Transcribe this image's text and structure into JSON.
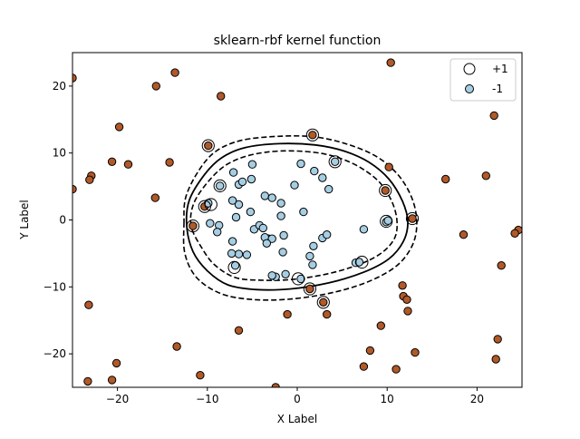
{
  "chart_data": {
    "type": "scatter",
    "title": "sklearn-rbf kernel function",
    "xlabel": "X Label",
    "ylabel": "Y Label",
    "xlim": [
      -25,
      25
    ],
    "ylim": [
      -25,
      25
    ],
    "xticks": [
      -20,
      -10,
      0,
      10,
      20
    ],
    "yticks": [
      -20,
      -10,
      0,
      10,
      20
    ],
    "grid": false,
    "legend_position": "top-right",
    "legend": [
      {
        "label": "+1",
        "marker": "open-circle"
      },
      {
        "label": "-1",
        "marker": "filled-circle",
        "color": "#a6cee3"
      }
    ],
    "colors": {
      "class_pos": "#b15928",
      "class_neg": "#a6cee3",
      "edge": "#000000"
    },
    "series": [
      {
        "class": "outer",
        "color": "#b15928",
        "points": [
          [
            -25,
            21.2
          ],
          [
            -25,
            4.6
          ],
          [
            -22.9,
            6.6
          ],
          [
            -23.1,
            6.0
          ],
          [
            -20.6,
            8.7
          ],
          [
            -19.8,
            13.9
          ],
          [
            -18.8,
            8.3
          ],
          [
            -15.7,
            20
          ],
          [
            -15.8,
            3.3
          ],
          [
            -14.2,
            8.6
          ],
          [
            -13.6,
            22
          ],
          [
            -8.5,
            18.5
          ],
          [
            -11.6,
            -0.9
          ],
          [
            -10.3,
            2.0
          ],
          [
            -9.9,
            11.1
          ],
          [
            -23.2,
            -12.7
          ],
          [
            -23.3,
            -24.1
          ],
          [
            -20.6,
            -23.9
          ],
          [
            -20.1,
            -21.4
          ],
          [
            -13.4,
            -18.9
          ],
          [
            -10.8,
            -23.2
          ],
          [
            -6.5,
            -16.5
          ],
          [
            -2.4,
            -25
          ],
          [
            -1.1,
            -14.1
          ],
          [
            1.4,
            -10.3
          ],
          [
            2.9,
            -12.3
          ],
          [
            3.3,
            -14.1
          ],
          [
            1.7,
            12.7
          ],
          [
            10.4,
            23.5
          ],
          [
            10.2,
            7.9
          ],
          [
            9.8,
            4.4
          ],
          [
            12.8,
            0.2
          ],
          [
            16.5,
            6.1
          ],
          [
            18.5,
            -2.2
          ],
          [
            21.9,
            15.6
          ],
          [
            21,
            6.6
          ],
          [
            24.6,
            -1.5
          ],
          [
            24.2,
            -2
          ],
          [
            11.7,
            -9.8
          ],
          [
            11.8,
            -11.4
          ],
          [
            12.3,
            -13.6
          ],
          [
            12.2,
            -11.9
          ],
          [
            9.3,
            -15.8
          ],
          [
            8.1,
            -19.5
          ],
          [
            7.4,
            -21.9
          ],
          [
            11,
            -22.3
          ],
          [
            13.1,
            -19.8
          ],
          [
            22.3,
            -17.8
          ],
          [
            22.7,
            -6.8
          ],
          [
            22.1,
            -20.8
          ]
        ]
      },
      {
        "class": "inner",
        "color": "#a6cee3",
        "points": [
          [
            -8.6,
            5.1
          ],
          [
            -7.1,
            7.1
          ],
          [
            -6.5,
            5.3
          ],
          [
            -6.1,
            5.7
          ],
          [
            -5.1,
            6.1
          ],
          [
            -5,
            8.3
          ],
          [
            -3.6,
            3.6
          ],
          [
            -2.8,
            3.3
          ],
          [
            -1.8,
            2.5
          ],
          [
            -0.3,
            5.2
          ],
          [
            0.4,
            8.4
          ],
          [
            1.9,
            7.3
          ],
          [
            2.8,
            6.3
          ],
          [
            3.5,
            4.6
          ],
          [
            4.2,
            8.7
          ],
          [
            -9.9,
            2.5
          ],
          [
            -9.7,
            -0.5
          ],
          [
            -8.7,
            -0.8
          ],
          [
            -8.9,
            -1.8
          ],
          [
            -6.8,
            0.4
          ],
          [
            -6.5,
            2.3
          ],
          [
            -5.2,
            1.2
          ],
          [
            -7.2,
            2.9
          ],
          [
            -6.5,
            -5.1
          ],
          [
            -7.2,
            -3.2
          ],
          [
            -7.3,
            -5.0
          ],
          [
            -6.9,
            -6.8
          ],
          [
            -5.6,
            -5.2
          ],
          [
            -4.8,
            -1.4
          ],
          [
            -3.2,
            -2.8
          ],
          [
            -3.6,
            -2.6
          ],
          [
            -2.8,
            -2.8
          ],
          [
            -3.4,
            -3.5
          ],
          [
            -4.2,
            -0.8
          ],
          [
            -3.8,
            -1.2
          ],
          [
            -1.5,
            -2.3
          ],
          [
            -1.8,
            0.6
          ],
          [
            -1.6,
            -4.8
          ],
          [
            -1.3,
            -8.1
          ],
          [
            -2.4,
            -8.5
          ],
          [
            -2.8,
            -8.3
          ],
          [
            0.4,
            -8.8
          ],
          [
            0.7,
            1.2
          ],
          [
            1.8,
            -3.9
          ],
          [
            1.4,
            -5.4
          ],
          [
            1.7,
            -6.7
          ],
          [
            2.8,
            -2.7
          ],
          [
            3.3,
            -2.2
          ],
          [
            6.5,
            -6.4
          ],
          [
            6.9,
            -6.3
          ],
          [
            7.4,
            -1.4
          ],
          [
            9.9,
            -0.3
          ],
          [
            10.1,
            -0.1
          ]
        ]
      }
    ],
    "support_vectors": [
      [
        -9.9,
        11.1
      ],
      [
        -9.6,
        2.3
      ],
      [
        -10.3,
        2.0
      ],
      [
        -8.6,
        5.1
      ],
      [
        -11.6,
        -0.9
      ],
      [
        -7,
        -7.1
      ],
      [
        0.1,
        -8.8
      ],
      [
        1.4,
        -10.3
      ],
      [
        2.9,
        -12.3
      ],
      [
        1.7,
        12.7
      ],
      [
        4.2,
        8.7
      ],
      [
        9.8,
        4.4
      ],
      [
        9.9,
        -0.2
      ],
      [
        12.8,
        0.2
      ],
      [
        7.2,
        -6.3
      ]
    ],
    "decision_boundary": [
      [
        -12.3,
        -0.8
      ],
      [
        -12,
        3
      ],
      [
        -10.3,
        6.8
      ],
      [
        -8.4,
        9.3
      ],
      [
        -5.8,
        10.8
      ],
      [
        -2,
        11.4
      ],
      [
        2,
        11.2
      ],
      [
        5.2,
        10.3
      ],
      [
        8,
        8.6
      ],
      [
        10.2,
        6.1
      ],
      [
        11.7,
        2.8
      ],
      [
        12.3,
        -0.3
      ],
      [
        11.8,
        -3.2
      ],
      [
        10.2,
        -5.8
      ],
      [
        7.4,
        -7.8
      ],
      [
        3.5,
        -9.4
      ],
      [
        -0.7,
        -10.3
      ],
      [
        -4.5,
        -10.4
      ],
      [
        -7.7,
        -9.7
      ],
      [
        -10,
        -7.6
      ],
      [
        -11.6,
        -4.7
      ]
    ],
    "margin_outer": [
      [
        -12.6,
        -0.6
      ],
      [
        -12.4,
        3.4
      ],
      [
        -10.9,
        7.5
      ],
      [
        -9,
        10.3
      ],
      [
        -6.2,
        11.9
      ],
      [
        -2.1,
        12.5
      ],
      [
        2,
        12.4
      ],
      [
        5.6,
        11.3
      ],
      [
        8.9,
        9.4
      ],
      [
        11.3,
        6.6
      ],
      [
        12.8,
        3.1
      ],
      [
        13.3,
        -0.5
      ],
      [
        12.8,
        -3.8
      ],
      [
        11.1,
        -6.8
      ],
      [
        8.1,
        -9.1
      ],
      [
        4.1,
        -10.8
      ],
      [
        -0.6,
        -11.8
      ],
      [
        -4.9,
        -11.9
      ],
      [
        -8.5,
        -11
      ],
      [
        -11.2,
        -8.6
      ],
      [
        -12.5,
        -5
      ]
    ],
    "margin_inner": [
      [
        -11.8,
        -0.9
      ],
      [
        -11.5,
        2.5
      ],
      [
        -9.8,
        5.9
      ],
      [
        -7.8,
        8.3
      ],
      [
        -5.2,
        9.7
      ],
      [
        -1.9,
        10.3
      ],
      [
        1.9,
        10.1
      ],
      [
        4.8,
        9.2
      ],
      [
        7.3,
        7.6
      ],
      [
        9.3,
        5.4
      ],
      [
        10.6,
        2.5
      ],
      [
        11.1,
        -0.3
      ],
      [
        10.8,
        -2.8
      ],
      [
        9.3,
        -5
      ],
      [
        6.8,
        -6.7
      ],
      [
        3.2,
        -8.1
      ],
      [
        -0.7,
        -8.9
      ],
      [
        -4,
        -9
      ],
      [
        -6.9,
        -8.6
      ],
      [
        -9.2,
        -6.7
      ],
      [
        -10.6,
        -4.2
      ]
    ]
  }
}
